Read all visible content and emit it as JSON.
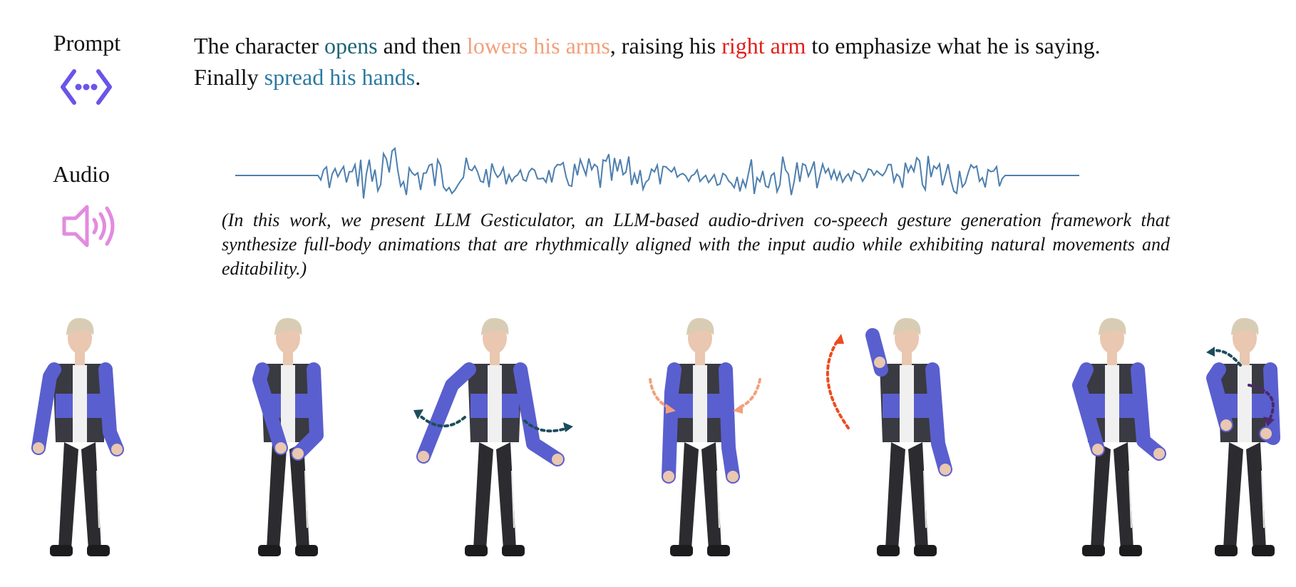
{
  "prompt": {
    "label": "Prompt",
    "icon": "prompt-code-icon",
    "icon_color": "#6a55e8",
    "text_segments": [
      {
        "text": "The character ",
        "role": "plain"
      },
      {
        "text": "opens",
        "role": "opens"
      },
      {
        "text": " and then ",
        "role": "plain"
      },
      {
        "text": "lowers his arms",
        "role": "lowers"
      },
      {
        "text": ", raising his ",
        "role": "plain"
      },
      {
        "text": "right arm",
        "role": "right"
      },
      {
        "text": " to emphasize what he is saying.",
        "role": "plain"
      },
      {
        "text": "Finally ",
        "role": "plain"
      },
      {
        "text": "spread his hands",
        "role": "spread"
      },
      {
        "text": ".",
        "role": "plain"
      }
    ],
    "colors": {
      "opens": "#1f6577",
      "lowers": "#f2a07b",
      "right": "#e0201b",
      "spread": "#2b7aa0"
    }
  },
  "audio": {
    "label": "Audio",
    "icon": "speaker-icon",
    "icon_color": "#e28be0",
    "waveform_color": "#4d7fae",
    "transcript": "(In this work, we present LLM Gesticulator, an LLM-based audio-driven co-speech gesture generation framework that synthesize full-body animations that are rhythmically aligned with the input audio while exhibiting natural movements and editability.)"
  },
  "poses": [
    {
      "name": "pose-1-idle",
      "arrow": "none"
    },
    {
      "name": "pose-2-hands-together",
      "arrow": "none"
    },
    {
      "name": "pose-3-opens",
      "arrow": "opens",
      "arrow_color": "#1d4d5c"
    },
    {
      "name": "pose-4-lowers-arms",
      "arrow": "lowers",
      "arrow_color": "#f2a07b"
    },
    {
      "name": "pose-5-right-arm-raise",
      "arrow": "right",
      "arrow_color": "#ef4a1e"
    },
    {
      "name": "pose-6-gesture",
      "arrow": "none"
    },
    {
      "name": "pose-7-spread-hands",
      "arrow": "spread",
      "arrow_color": "#1d4d5c",
      "arrow_color_2": "#4a2a6a"
    }
  ],
  "character_colors": {
    "jacket_sleeve": "#5a5fcf",
    "jacket_body": "#3a3a42",
    "pants": "#2c2c30",
    "hair": "#d8cdb4",
    "skin": "#e9c7b0"
  }
}
